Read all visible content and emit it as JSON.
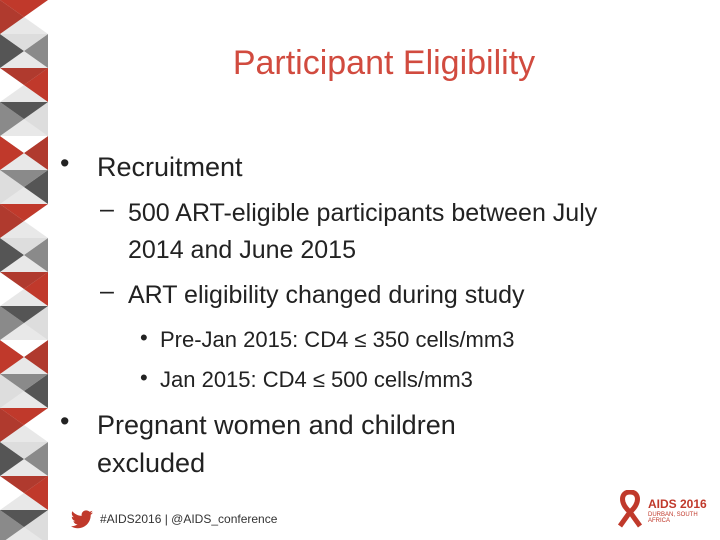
{
  "title": "Participant Eligibility",
  "bullets": [
    {
      "text": "Recruitment",
      "items": [
        {
          "text": "500 ART-eligible participants between July 2014 and June 2015"
        },
        {
          "text": "ART eligibility changed during study",
          "items": [
            "Pre-Jan 2015: CD4 ≤ 350 cells/mm3",
            "Jan 2015: CD4 ≤ 500 cells/mm3"
          ]
        }
      ]
    },
    {
      "text": "Pregnant women and children excluded"
    }
  ],
  "footer": "#AIDS2016 | @AIDS_conference",
  "logo": {
    "name": "AIDS 2016",
    "place": "DURBAN, SOUTH AFRICA"
  }
}
